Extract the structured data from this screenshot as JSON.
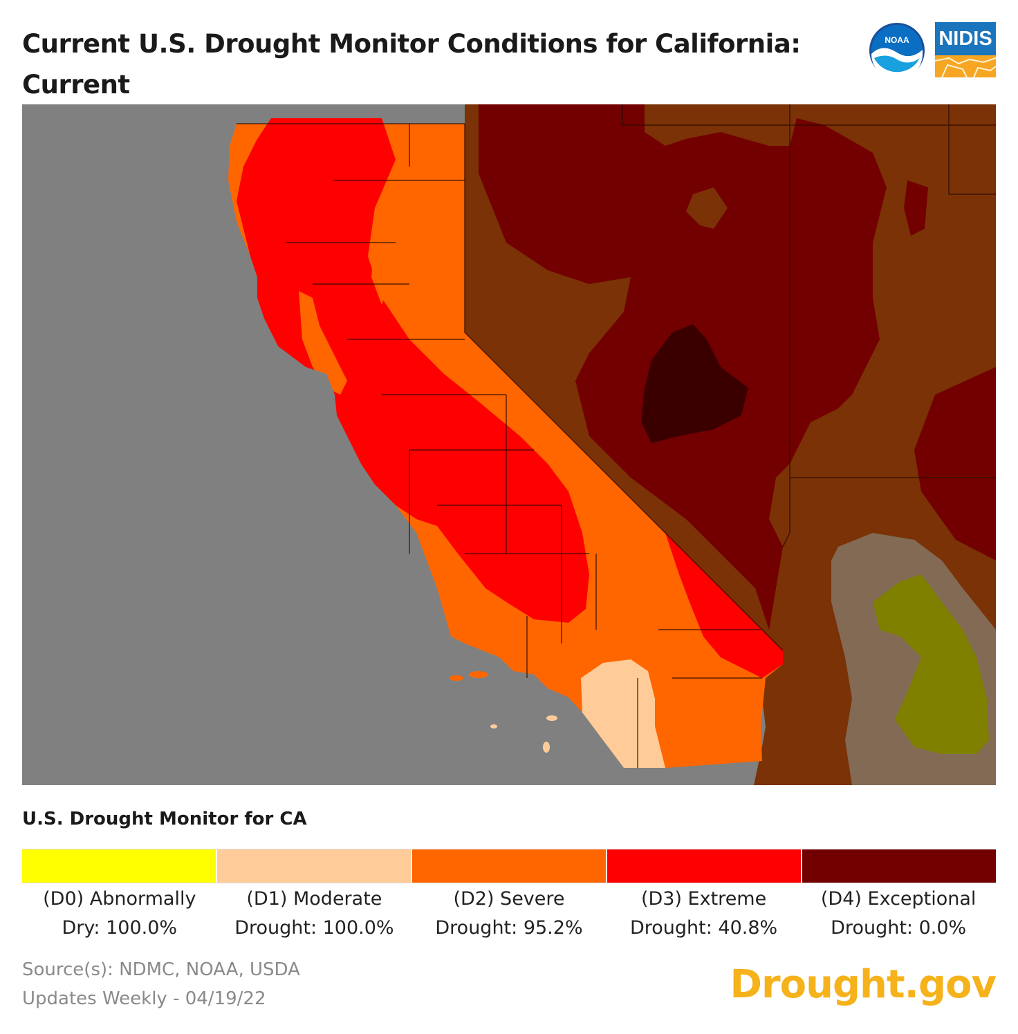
{
  "header": {
    "title_line1": "Current U.S. Drought Monitor Conditions for California:",
    "title_line2": "Current",
    "logos": [
      {
        "name": "noaa",
        "text": "NOAA"
      },
      {
        "name": "nidis",
        "text": "NIDIS"
      }
    ]
  },
  "map": {
    "colors": {
      "ocean": "#808080",
      "outside_region": "#7a3206",
      "d1": "#ffcc99",
      "d2": "#ff6600",
      "d3": "#ff0000",
      "d4": "#730000",
      "d4_dark": "#3a0000",
      "olive": "#808000",
      "tan": "#826a55"
    }
  },
  "legend": {
    "title": "U.S. Drought Monitor for CA",
    "items": [
      {
        "line1": "(D0) Abnormally",
        "line2": "Dry: 100.0%",
        "color": "#ffff00",
        "value": 100.0
      },
      {
        "line1": "(D1) Moderate",
        "line2": "Drought: 100.0%",
        "color": "#ffcc99",
        "value": 100.0
      },
      {
        "line1": "(D2) Severe",
        "line2": "Drought: 95.2%",
        "color": "#ff6600",
        "value": 95.2
      },
      {
        "line1": "(D3) Extreme",
        "line2": "Drought: 40.8%",
        "color": "#ff0000",
        "value": 40.8
      },
      {
        "line1": "(D4) Exceptional",
        "line2": "Drought: 0.0%",
        "color": "#730000",
        "value": 0.0
      }
    ]
  },
  "footer": {
    "source": "Source(s): NDMC, NOAA, USDA",
    "updates": "Updates Weekly - 04/19/22",
    "brand": "Drought.gov"
  }
}
